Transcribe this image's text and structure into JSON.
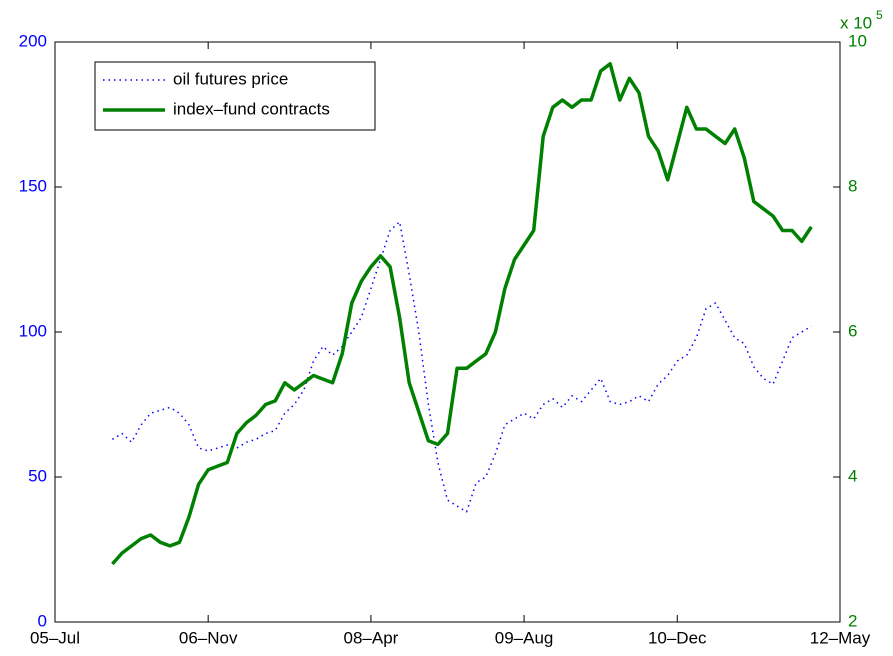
{
  "chart_data": {
    "type": "line",
    "x": [
      "2006-01",
      "2006-02",
      "2006-03",
      "2006-04",
      "2006-05",
      "2006-06",
      "2006-07",
      "2006-08",
      "2006-09",
      "2006-10",
      "2006-11",
      "2006-12",
      "2007-01",
      "2007-02",
      "2007-03",
      "2007-04",
      "2007-05",
      "2007-06",
      "2007-07",
      "2007-08",
      "2007-09",
      "2007-10",
      "2007-11",
      "2007-12",
      "2008-01",
      "2008-02",
      "2008-03",
      "2008-04",
      "2008-05",
      "2008-06",
      "2008-07",
      "2008-08",
      "2008-09",
      "2008-10",
      "2008-11",
      "2008-12",
      "2009-01",
      "2009-02",
      "2009-03",
      "2009-04",
      "2009-05",
      "2009-06",
      "2009-07",
      "2009-08",
      "2009-09",
      "2009-10",
      "2009-11",
      "2009-12",
      "2010-01",
      "2010-02",
      "2010-03",
      "2010-04",
      "2010-05",
      "2010-06",
      "2010-07",
      "2010-08",
      "2010-09",
      "2010-10",
      "2010-11",
      "2010-12",
      "2011-01",
      "2011-02",
      "2011-03",
      "2011-04",
      "2011-05",
      "2011-06",
      "2011-07",
      "2011-08",
      "2011-09",
      "2011-10",
      "2011-11",
      "2011-12",
      "2012-01",
      "2012-02"
    ],
    "series": [
      {
        "name": "oil futures price",
        "color": "#0000ff",
        "axis": "y",
        "values": [
          63,
          65,
          62,
          68,
          72,
          73,
          74,
          72,
          68,
          60,
          59,
          60,
          61,
          60,
          62,
          63,
          65,
          66,
          72,
          75,
          80,
          90,
          95,
          92,
          95,
          100,
          105,
          115,
          125,
          135,
          138,
          120,
          100,
          75,
          55,
          42,
          40,
          38,
          48,
          50,
          58,
          68,
          70,
          72,
          70,
          75,
          77,
          74,
          78,
          76,
          80,
          84,
          76,
          75,
          76,
          78,
          76,
          82,
          85,
          90,
          92,
          98,
          108,
          110,
          104,
          98,
          96,
          88,
          84,
          82,
          90,
          98,
          100,
          102
        ]
      },
      {
        "name": "index–fund contracts",
        "color": "#008000",
        "axis": "y2",
        "values": [
          2.8,
          2.95,
          3.05,
          3.15,
          3.2,
          3.1,
          3.05,
          3.1,
          3.45,
          3.9,
          4.1,
          4.15,
          4.2,
          4.6,
          4.75,
          4.85,
          5.0,
          5.05,
          5.3,
          5.2,
          5.3,
          5.4,
          5.35,
          5.3,
          5.7,
          6.4,
          6.7,
          6.9,
          7.05,
          6.9,
          6.2,
          5.3,
          4.9,
          4.5,
          4.45,
          4.6,
          5.5,
          5.5,
          5.6,
          5.7,
          6.0,
          6.6,
          7.0,
          7.2,
          7.4,
          8.7,
          9.1,
          9.2,
          9.1,
          9.2,
          9.2,
          9.6,
          9.7,
          9.2,
          9.5,
          9.3,
          8.7,
          8.5,
          8.1,
          8.6,
          9.1,
          8.8,
          8.8,
          8.7,
          8.6,
          8.8,
          8.4,
          7.8,
          7.7,
          7.6,
          7.4,
          7.4,
          7.25,
          7.45
        ]
      }
    ],
    "xlim": [
      "2005-07",
      "2012-05"
    ],
    "xticks": [
      {
        "value": "2005-07",
        "label": "05–Jul"
      },
      {
        "value": "2006-11",
        "label": "06–Nov"
      },
      {
        "value": "2008-04",
        "label": "08–Apr"
      },
      {
        "value": "2009-08",
        "label": "09–Aug"
      },
      {
        "value": "2010-12",
        "label": "10–Dec"
      },
      {
        "value": "2012-05",
        "label": "12–May"
      }
    ],
    "ylim": [
      0,
      200
    ],
    "yticks": [
      0,
      50,
      100,
      150,
      200
    ],
    "y2lim": [
      2,
      10
    ],
    "y2ticks": [
      2,
      4,
      6,
      8,
      10
    ],
    "y2_multiplier": {
      "base": "x 10",
      "exponent": "5"
    },
    "y_color": "#0000ff",
    "y2_color": "#008000",
    "legend": "upper left"
  }
}
